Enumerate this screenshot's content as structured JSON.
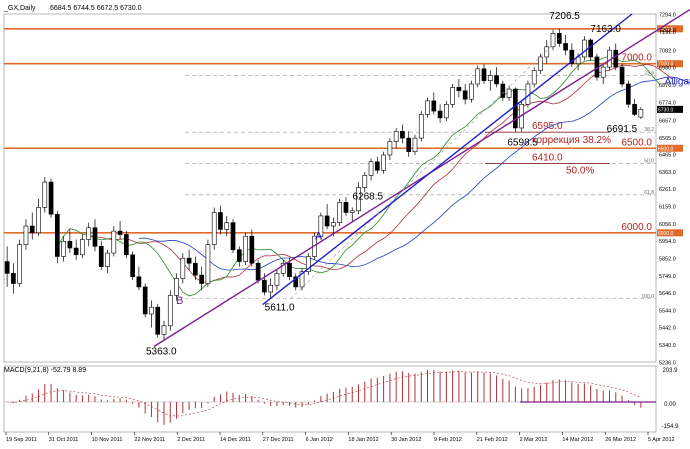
{
  "header": {
    "symbol_label": "_GX,Daily",
    "ohlc_label": "6684.5 6744.5 6672.5 6730.0"
  },
  "macd": {
    "label": "MACD(9,21,8) -52.79 8.89",
    "scale_top": "203.9",
    "scale_zero": "0.00",
    "scale_bottom": "-154.9"
  },
  "chart_data": {
    "type": "candlestick",
    "ylim": [
      5236,
      7294
    ],
    "price_scale_labels": [
      "7294.0",
      "7202.0",
      "7191.0",
      "7082.0",
      "6980.0",
      "6876.0",
      "6774.0",
      "6667.0",
      "6565.0",
      "6465.0",
      "6363.0",
      "6261.0",
      "6159.0",
      "6056.0",
      "5954.0",
      "5852.0",
      "5749.0",
      "5646.0",
      "5544.0",
      "5442.0",
      "5340.0",
      "5236.0"
    ],
    "date_labels": [
      "19 Sep 2011",
      "31 Oct 2011",
      "10 Nov 2011",
      "22 Nov 2011",
      "2 Dec 2011",
      "14 Dec 2011",
      "27 Dec 2011",
      "6 Jan 2012",
      "18 Jan 2012",
      "30 Jan 2012",
      "9 Feb 2012",
      "21 Feb 2012",
      "2 Mar 2012",
      "14 Mar 2012",
      "26 Mar 2012",
      "5 Apr 2012"
    ],
    "current_price": "6730.0",
    "horizontal_levels": [
      {
        "value": 7206.5,
        "marker": "7206.5",
        "label": ""
      },
      {
        "value": 7000.0,
        "marker": "7000.0",
        "label": "7000.0"
      },
      {
        "value": 6500.0,
        "marker": "6500.0",
        "label": "6500.0"
      },
      {
        "value": 6000.0,
        "marker": "6000.0",
        "label": "6000.0"
      }
    ],
    "fib_levels": [
      {
        "value": 6930,
        "pct": "23.6",
        "label": ""
      },
      {
        "value": 6595,
        "pct": "38.2",
        "label": "6595.0"
      },
      {
        "value": 6410,
        "pct": "50.0",
        "label": "6410.0"
      },
      {
        "value": 6225,
        "pct": "61.8",
        "label": ""
      },
      {
        "value": 5610,
        "pct": "100.0",
        "label": ""
      }
    ],
    "annotations": [
      {
        "text": "7206.5"
      },
      {
        "text": "7163.0"
      },
      {
        "text": "Alligator"
      },
      {
        "text": "6691.5"
      },
      {
        "text": "6598.5"
      },
      {
        "text": "коррекция 38.2%"
      },
      {
        "text": "50.0%"
      },
      {
        "text": "6268.5"
      },
      {
        "text": "A"
      },
      {
        "text": "B"
      },
      {
        "text": "5611.0"
      },
      {
        "text": "5363.0"
      }
    ],
    "candles": [
      [
        5830,
        5920,
        5680,
        5760
      ],
      [
        5760,
        5820,
        5640,
        5700
      ],
      [
        5700,
        5960,
        5680,
        5930
      ],
      [
        5930,
        6080,
        5900,
        6040
      ],
      [
        6040,
        6120,
        5960,
        6000
      ],
      [
        6000,
        6200,
        5980,
        6150
      ],
      [
        6150,
        6330,
        6120,
        6300
      ],
      [
        6300,
        6320,
        6090,
        6110
      ],
      [
        6110,
        6130,
        5820,
        5860
      ],
      [
        5860,
        5980,
        5830,
        5950
      ],
      [
        5950,
        6020,
        5880,
        5910
      ],
      [
        5910,
        5960,
        5840,
        5870
      ],
      [
        5870,
        5990,
        5850,
        5960
      ],
      [
        5960,
        6060,
        5920,
        6030
      ],
      [
        6030,
        6080,
        5890,
        5920
      ],
      [
        5920,
        5950,
        5780,
        5800
      ],
      [
        5800,
        5900,
        5760,
        5880
      ],
      [
        5880,
        6040,
        5860,
        6010
      ],
      [
        6010,
        6070,
        5960,
        5990
      ],
      [
        5990,
        6010,
        5850,
        5870
      ],
      [
        5870,
        5890,
        5720,
        5740
      ],
      [
        5740,
        5800,
        5660,
        5680
      ],
      [
        5680,
        5700,
        5500,
        5520
      ],
      [
        5520,
        5600,
        5440,
        5560
      ],
      [
        5560,
        5580,
        5380,
        5400
      ],
      [
        5400,
        5480,
        5363,
        5450
      ],
      [
        5450,
        5660,
        5420,
        5630
      ],
      [
        5630,
        5760,
        5600,
        5730
      ],
      [
        5730,
        5880,
        5700,
        5850
      ],
      [
        5850,
        5900,
        5780,
        5820
      ],
      [
        5820,
        5860,
        5720,
        5750
      ],
      [
        5750,
        5800,
        5660,
        5700
      ],
      [
        5700,
        5960,
        5680,
        5930
      ],
      [
        5930,
        6150,
        5900,
        6120
      ],
      [
        6120,
        6160,
        5990,
        6020
      ],
      [
        6020,
        6100,
        5980,
        6060
      ],
      [
        6060,
        6080,
        5880,
        5900
      ],
      [
        5900,
        5920,
        5800,
        5830
      ],
      [
        5830,
        6000,
        5810,
        5980
      ],
      [
        5980,
        6020,
        5800,
        5820
      ],
      [
        5820,
        5840,
        5700,
        5720
      ],
      [
        5720,
        5760,
        5630,
        5650
      ],
      [
        5650,
        5730,
        5611,
        5690
      ],
      [
        5690,
        5780,
        5660,
        5760
      ],
      [
        5760,
        5840,
        5740,
        5820
      ],
      [
        5820,
        5850,
        5720,
        5740
      ],
      [
        5740,
        5760,
        5660,
        5680
      ],
      [
        5680,
        5790,
        5660,
        5770
      ],
      [
        5770,
        5880,
        5750,
        5860
      ],
      [
        5860,
        6000,
        5840,
        5980
      ],
      [
        5980,
        6120,
        5960,
        6100
      ],
      [
        6100,
        6170,
        6020,
        6040
      ],
      [
        6040,
        6090,
        5980,
        6060
      ],
      [
        6060,
        6200,
        6040,
        6180
      ],
      [
        6180,
        6210,
        6100,
        6120
      ],
      [
        6120,
        6150,
        6060,
        6130
      ],
      [
        6130,
        6300,
        6110,
        6268
      ],
      [
        6268,
        6360,
        6240,
        6340
      ],
      [
        6340,
        6440,
        6310,
        6420
      ],
      [
        6420,
        6450,
        6350,
        6370
      ],
      [
        6370,
        6480,
        6350,
        6460
      ],
      [
        6460,
        6560,
        6430,
        6540
      ],
      [
        6540,
        6620,
        6500,
        6600
      ],
      [
        6600,
        6640,
        6530,
        6560
      ],
      [
        6560,
        6600,
        6450,
        6480
      ],
      [
        6480,
        6580,
        6460,
        6560
      ],
      [
        6560,
        6720,
        6540,
        6700
      ],
      [
        6700,
        6800,
        6680,
        6780
      ],
      [
        6780,
        6830,
        6700,
        6720
      ],
      [
        6720,
        6760,
        6650,
        6680
      ],
      [
        6680,
        6780,
        6660,
        6760
      ],
      [
        6760,
        6880,
        6740,
        6860
      ],
      [
        6860,
        6910,
        6800,
        6840
      ],
      [
        6840,
        6880,
        6760,
        6790
      ],
      [
        6790,
        6900,
        6770,
        6880
      ],
      [
        6880,
        6990,
        6860,
        6970
      ],
      [
        6970,
        7000,
        6880,
        6900
      ],
      [
        6900,
        6960,
        6840,
        6930
      ],
      [
        6930,
        6980,
        6860,
        6880
      ],
      [
        6880,
        6900,
        6780,
        6800
      ],
      [
        6800,
        6870,
        6780,
        6850
      ],
      [
        6850,
        6860,
        6598,
        6620
      ],
      [
        6620,
        6780,
        6600,
        6760
      ],
      [
        6760,
        6900,
        6740,
        6880
      ],
      [
        6880,
        6980,
        6860,
        6960
      ],
      [
        6960,
        7060,
        6940,
        7040
      ],
      [
        7040,
        7140,
        7000,
        7100
      ],
      [
        7100,
        7200,
        7080,
        7180
      ],
      [
        7180,
        7206,
        7100,
        7120
      ],
      [
        7120,
        7170,
        7050,
        7080
      ],
      [
        7080,
        7120,
        6980,
        7000
      ],
      [
        7000,
        7060,
        6960,
        7040
      ],
      [
        7040,
        7163,
        7020,
        7140
      ],
      [
        7140,
        7150,
        7020,
        7040
      ],
      [
        7040,
        7060,
        6900,
        6920
      ],
      [
        6920,
        7000,
        6880,
        6980
      ],
      [
        6980,
        7100,
        6960,
        7080
      ],
      [
        7080,
        7120,
        6960,
        6980
      ],
      [
        6980,
        7000,
        6860,
        6880
      ],
      [
        6880,
        6900,
        6740,
        6760
      ],
      [
        6760,
        6790,
        6691,
        6700
      ],
      [
        6684,
        6744,
        6672,
        6730
      ]
    ],
    "alligator_label": "Alligator"
  }
}
